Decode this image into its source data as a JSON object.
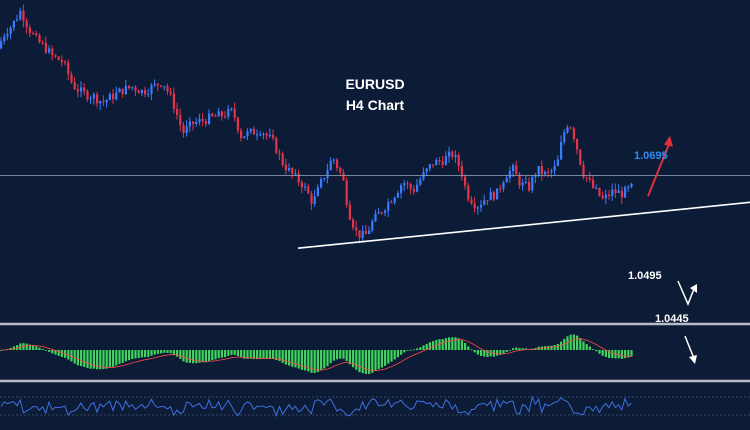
{
  "chart_data": {
    "type": "candlestick",
    "title": "EURUSD",
    "subtitle": "H4 Chart",
    "grid": false,
    "ylim": [
      1.0405,
      1.0935
    ],
    "colors": {
      "background": "#0c1b36",
      "bull": "#3b7cff",
      "bear": "#e2344a",
      "trendline": "#ffffff",
      "target": "#2f8ff0",
      "up_arrow": "#e0303a",
      "macd_bar": "#3fd45a",
      "macd_signal": "#ff4a4a",
      "rsi": "#3f6fe0",
      "separator": "#b8bcc6"
    },
    "price_path": [
      [
        0,
        1.0852
      ],
      [
        8,
        1.0882
      ],
      [
        15,
        1.0893
      ],
      [
        24,
        1.0918
      ],
      [
        32,
        1.0888
      ],
      [
        40,
        1.0868
      ],
      [
        48,
        1.0858
      ],
      [
        56,
        1.0842
      ],
      [
        66,
        1.0834
      ],
      [
        76,
        1.0796
      ],
      [
        86,
        1.0782
      ],
      [
        96,
        1.0778
      ],
      [
        106,
        1.0768
      ],
      [
        116,
        1.0778
      ],
      [
        126,
        1.0788
      ],
      [
        136,
        1.0793
      ],
      [
        146,
        1.0785
      ],
      [
        156,
        1.0793
      ],
      [
        166,
        1.0802
      ],
      [
        176,
        1.0768
      ],
      [
        186,
        1.0718
      ],
      [
        196,
        1.0733
      ],
      [
        206,
        1.0738
      ],
      [
        216,
        1.0743
      ],
      [
        226,
        1.0747
      ],
      [
        236,
        1.0753
      ],
      [
        244,
        1.0713
      ],
      [
        254,
        1.0718
      ],
      [
        264,
        1.0723
      ],
      [
        276,
        1.0703
      ],
      [
        286,
        1.0668
      ],
      [
        296,
        1.0648
      ],
      [
        306,
        1.0633
      ],
      [
        316,
        1.0603
      ],
      [
        326,
        1.0643
      ],
      [
        336,
        1.0678
      ],
      [
        346,
        1.0643
      ],
      [
        352,
        1.0588
      ],
      [
        360,
        1.0553
      ],
      [
        368,
        1.0548
      ],
      [
        376,
        1.0573
      ],
      [
        386,
        1.0593
      ],
      [
        396,
        1.0613
      ],
      [
        406,
        1.0638
      ],
      [
        416,
        1.0623
      ],
      [
        426,
        1.0648
      ],
      [
        436,
        1.0668
      ],
      [
        446,
        1.0673
      ],
      [
        456,
        1.0683
      ],
      [
        464,
        1.0658
      ],
      [
        470,
        1.0618
      ],
      [
        480,
        1.0598
      ],
      [
        490,
        1.0613
      ],
      [
        500,
        1.0618
      ],
      [
        508,
        1.0648
      ],
      [
        516,
        1.0658
      ],
      [
        524,
        1.0633
      ],
      [
        532,
        1.0628
      ],
      [
        540,
        1.0658
      ],
      [
        550,
        1.0648
      ],
      [
        560,
        1.0663
      ],
      [
        566,
        1.0713
      ],
      [
        572,
        1.0738
      ],
      [
        578,
        1.0708
      ],
      [
        586,
        1.0653
      ],
      [
        596,
        1.0628
      ],
      [
        606,
        1.0608
      ],
      [
        616,
        1.0622
      ],
      [
        626,
        1.0618
      ],
      [
        634,
        1.0628
      ]
    ],
    "levels": [
      {
        "label": "1.0695",
        "value": 1.0695,
        "color": "#2f8ff0"
      },
      {
        "label": "1.0495",
        "value": 1.0495,
        "color": "#ffffff"
      },
      {
        "label": "1.0445",
        "value": 1.0445,
        "color": "#ffffff"
      }
    ],
    "horizontal_line": 1.0648,
    "trendline": {
      "from": [
        298,
        1.0529
      ],
      "to": [
        750,
        1.0604
      ]
    },
    "projection_arrow": {
      "from": [
        648,
        1.0614
      ],
      "to": [
        670,
        1.0713
      ]
    },
    "indicator_panels": [
      "MACD",
      "RSI"
    ]
  }
}
